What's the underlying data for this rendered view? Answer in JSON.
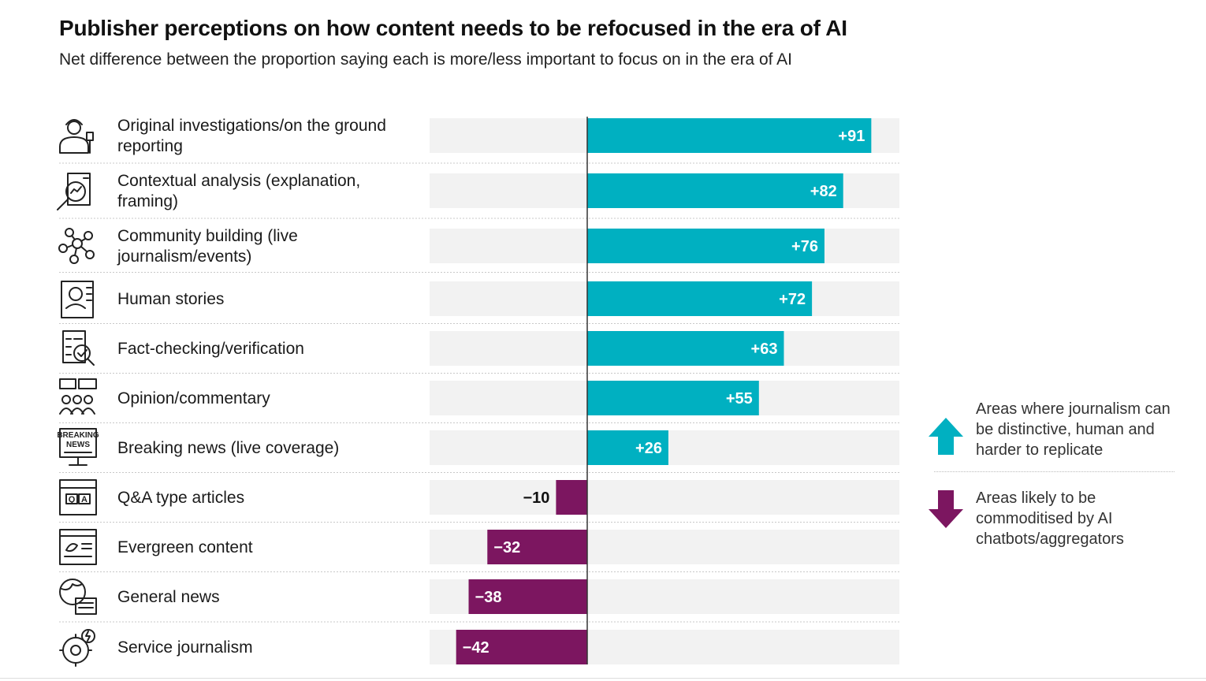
{
  "colors": {
    "positive": "#00B0C1",
    "negative": "#7C1660",
    "track": "#F2F2F2"
  },
  "chart_data": {
    "type": "bar",
    "orientation": "horizontal",
    "title": "Publisher perceptions on how content needs to be refocused in the era of AI",
    "subtitle": "Net difference between the proportion saying each is more/less important to focus on in the era of AI",
    "xlim": [
      -50,
      100
    ],
    "rows": [
      {
        "label_lines": [
          "Original investigations/on the ground",
          "reporting"
        ],
        "value": 91,
        "display": "+91",
        "icon": "reporter-icon"
      },
      {
        "label_lines": [
          "Contextual analysis (explanation,",
          "framing)"
        ],
        "value": 82,
        "display": "+82",
        "icon": "analysis-magnifier-icon"
      },
      {
        "label_lines": [
          "Community building (live",
          "journalism/events)"
        ],
        "value": 76,
        "display": "+76",
        "icon": "community-network-icon"
      },
      {
        "label_lines": [
          "Human stories"
        ],
        "value": 72,
        "display": "+72",
        "icon": "profile-book-icon"
      },
      {
        "label_lines": [
          "Fact-checking/verification"
        ],
        "value": 63,
        "display": "+63",
        "icon": "checklist-magnifier-icon"
      },
      {
        "label_lines": [
          "Opinion/commentary"
        ],
        "value": 55,
        "display": "+55",
        "icon": "speech-bubbles-people-icon"
      },
      {
        "label_lines": [
          "Breaking news (live coverage)"
        ],
        "value": 26,
        "display": "+26",
        "icon": "breaking-news-monitor-icon"
      },
      {
        "label_lines": [
          "Q&A type articles"
        ],
        "value": -10,
        "display": "−10",
        "icon": "qa-window-icon"
      },
      {
        "label_lines": [
          "Evergreen content"
        ],
        "value": -32,
        "display": "−32",
        "icon": "leaf-document-icon"
      },
      {
        "label_lines": [
          "General news"
        ],
        "value": -38,
        "display": "−38",
        "icon": "globe-newspaper-icon"
      },
      {
        "label_lines": [
          "Service journalism"
        ],
        "value": -42,
        "display": "−42",
        "icon": "gear-settings-icon"
      }
    ]
  },
  "legend": {
    "up": {
      "icon": "arrow-up-icon",
      "text": "Areas where journalism can be distinctive, human and harder to replicate"
    },
    "down": {
      "icon": "arrow-down-icon",
      "text": "Areas likely to be commoditised by AI chatbots/aggregators"
    }
  }
}
